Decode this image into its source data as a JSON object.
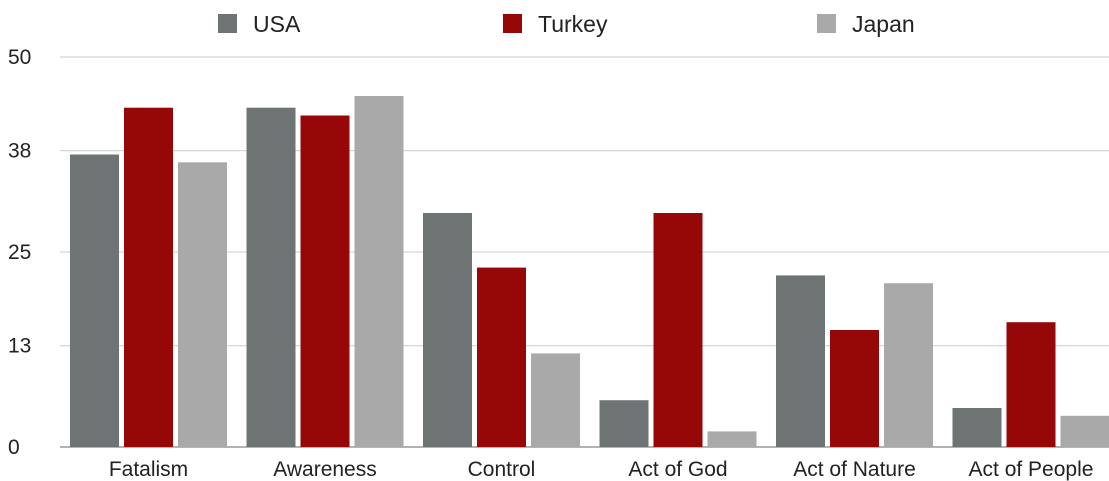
{
  "chart_data": {
    "type": "bar",
    "categories": [
      "Fatalism",
      "Awareness",
      "Control",
      "Act of God",
      "Act of Nature",
      "Act of People"
    ],
    "series": [
      {
        "name": "USA",
        "color": "#6e7473",
        "values": [
          37.5,
          43.5,
          30,
          6,
          22,
          5
        ]
      },
      {
        "name": "Turkey",
        "color": "#960707",
        "values": [
          43.5,
          42.5,
          23,
          30,
          15,
          16
        ]
      },
      {
        "name": "Japan",
        "color": "#a9a9a9",
        "values": [
          36.5,
          45,
          12,
          2,
          21,
          4
        ]
      }
    ],
    "yticks": [
      "0",
      "13",
      "25",
      "38",
      "50"
    ],
    "ylim": [
      0,
      50
    ],
    "grid": true,
    "legend_position": "top"
  }
}
